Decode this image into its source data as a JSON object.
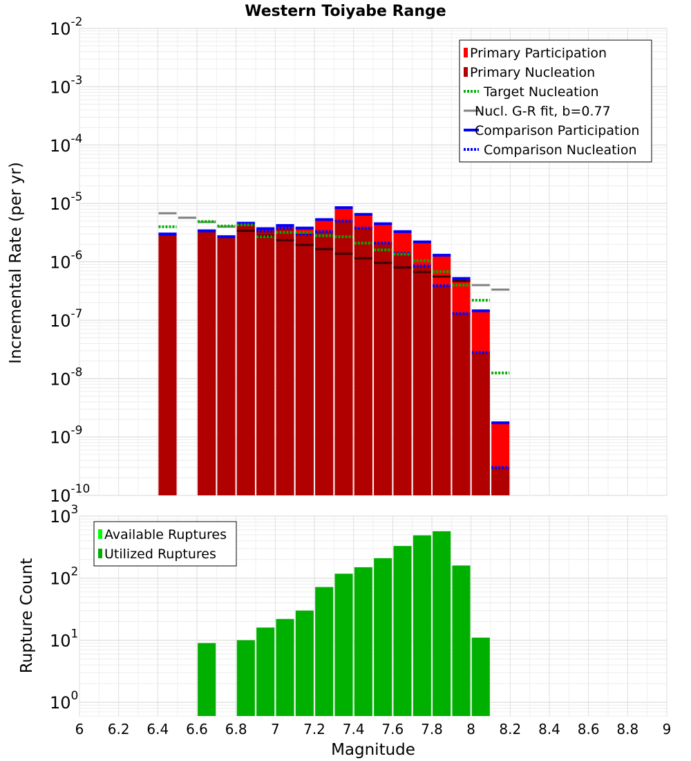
{
  "chart_data": [
    {
      "type": "bar",
      "title": "Western Toiyabe Range",
      "xlabel": "",
      "ylabel": "Incremental Rate (per yr)",
      "xlim": [
        6,
        9
      ],
      "ylim": [
        1e-10,
        0.01
      ],
      "yscale": "log",
      "grid": true,
      "legend_position": "top-right",
      "x_ticks": [
        "6",
        "6.2",
        "6.4",
        "6.6",
        "6.8",
        "7",
        "7.2",
        "7.4",
        "7.6",
        "7.8",
        "8",
        "8.2",
        "8.4",
        "8.6",
        "8.8",
        "9"
      ],
      "y_ticks": [
        {
          "base": "10",
          "exp": "-10"
        },
        {
          "base": "10",
          "exp": "-9"
        },
        {
          "base": "10",
          "exp": "-8"
        },
        {
          "base": "10",
          "exp": "-7"
        },
        {
          "base": "10",
          "exp": "-6"
        },
        {
          "base": "10",
          "exp": "-5"
        },
        {
          "base": "10",
          "exp": "-4"
        },
        {
          "base": "10",
          "exp": "-3"
        },
        {
          "base": "10",
          "exp": "-2"
        }
      ],
      "legend": [
        {
          "label": "Primary Participation",
          "style": "bar",
          "color": "#ff0000"
        },
        {
          "label": "Primary Nucleation",
          "style": "bar",
          "color": "#b00000"
        },
        {
          "label": "Target Nucleation",
          "style": "dotted",
          "color": "#00b000"
        },
        {
          "label": "Nucl. G-R fit, b=0.77",
          "style": "solid",
          "color": "#808080"
        },
        {
          "label": "Comparison Participation",
          "style": "solid-thick",
          "color": "#0000ff"
        },
        {
          "label": "Comparison Nucleation",
          "style": "dotted",
          "color": "#0000ff"
        }
      ],
      "x": [
        6.45,
        6.55,
        6.65,
        6.75,
        6.85,
        6.95,
        7.05,
        7.15,
        7.25,
        7.35,
        7.45,
        7.55,
        7.65,
        7.75,
        7.85,
        7.95,
        8.05,
        8.15
      ],
      "series": [
        {
          "name": "Primary Participation",
          "color": "#ff0000",
          "values": [
            3e-06,
            null,
            3.4e-06,
            2.7e-06,
            4.6e-06,
            3.7e-06,
            4.2e-06,
            3.8e-06,
            5.3e-06,
            8.5e-06,
            6.5e-06,
            4.5e-06,
            3.3e-06,
            2.2e-06,
            1.3e-06,
            5.2e-07,
            1.45e-07,
            1.75e-09
          ]
        },
        {
          "name": "Primary Nucleation",
          "color": "#b00000",
          "values": [
            3e-06,
            null,
            3.4e-06,
            2.7e-06,
            4.3e-06,
            3.4e-06,
            3.8e-06,
            3e-06,
            3.3e-06,
            5e-06,
            3.8e-06,
            2.1e-06,
            1.4e-06,
            8.5e-07,
            3.9e-07,
            1.3e-07,
            2.8e-08,
            3e-10
          ]
        },
        {
          "name": "Target Nucleation",
          "color": "#00b000",
          "values": [
            4e-06,
            null,
            4.9e-06,
            4.1e-06,
            4.3e-06,
            2.7e-06,
            3.2e-06,
            3.2e-06,
            2.8e-06,
            2.7e-06,
            2.1e-06,
            1.6e-06,
            1.35e-06,
            1.05e-06,
            6.8e-07,
            4e-07,
            2.2e-07,
            1.25e-08
          ]
        },
        {
          "name": "Nucl. G-R fit, b=0.77",
          "color": "#808080",
          "values": [
            6.8e-06,
            5.7e-06,
            4.8e-06,
            4e-06,
            3.4e-06,
            2.8e-06,
            2.35e-06,
            1.95e-06,
            1.65e-06,
            1.38e-06,
            1.15e-06,
            9.6e-07,
            8e-07,
            6.7e-07,
            5.6e-07,
            4.7e-07,
            4e-07,
            3.35e-07
          ]
        },
        {
          "name": "Comparison Participation",
          "color": "#0000ff",
          "values": [
            3e-06,
            null,
            3.4e-06,
            2.7e-06,
            4.6e-06,
            3.7e-06,
            4.2e-06,
            3.8e-06,
            5.3e-06,
            8.5e-06,
            6.5e-06,
            4.5e-06,
            3.3e-06,
            2.2e-06,
            1.3e-06,
            5.2e-07,
            1.45e-07,
            1.75e-09
          ]
        },
        {
          "name": "Comparison Nucleation",
          "color": "#0000ff",
          "values": [
            3e-06,
            null,
            3.4e-06,
            2.7e-06,
            4.3e-06,
            3.4e-06,
            3.8e-06,
            3e-06,
            3.3e-06,
            5e-06,
            3.8e-06,
            2.1e-06,
            1.4e-06,
            8.5e-07,
            3.9e-07,
            1.3e-07,
            2.8e-08,
            3e-10
          ]
        }
      ]
    },
    {
      "type": "bar",
      "title": "",
      "xlabel": "Magnitude",
      "ylabel": "Rupture Count",
      "xlim": [
        6,
        9
      ],
      "ylim": [
        0.6,
        1000
      ],
      "yscale": "log",
      "grid": true,
      "legend_position": "top-left",
      "x_ticks": [
        "6",
        "6.2",
        "6.4",
        "6.6",
        "6.8",
        "7",
        "7.2",
        "7.4",
        "7.6",
        "7.8",
        "8",
        "8.2",
        "8.4",
        "8.6",
        "8.8",
        "9"
      ],
      "y_ticks": [
        {
          "base": "10",
          "exp": "0"
        },
        {
          "base": "10",
          "exp": "1"
        },
        {
          "base": "10",
          "exp": "2"
        },
        {
          "base": "10",
          "exp": "3"
        }
      ],
      "legend": [
        {
          "label": "Available Ruptures",
          "style": "bar",
          "color": "#00ff00"
        },
        {
          "label": "Utilized Ruptures",
          "style": "bar",
          "color": "#00b000"
        }
      ],
      "x": [
        6.65,
        6.85,
        6.95,
        7.05,
        7.15,
        7.25,
        7.35,
        7.45,
        7.55,
        7.65,
        7.75,
        7.85,
        7.95,
        8.05
      ],
      "series": [
        {
          "name": "Available Ruptures",
          "color": "#00ff00",
          "values": [
            9,
            10,
            16,
            22,
            30,
            72,
            118,
            150,
            210,
            330,
            490,
            570,
            160,
            11
          ]
        },
        {
          "name": "Utilized Ruptures",
          "color": "#00b000",
          "values": [
            9,
            10,
            16,
            22,
            30,
            72,
            118,
            150,
            210,
            330,
            490,
            570,
            160,
            11
          ]
        }
      ]
    }
  ]
}
